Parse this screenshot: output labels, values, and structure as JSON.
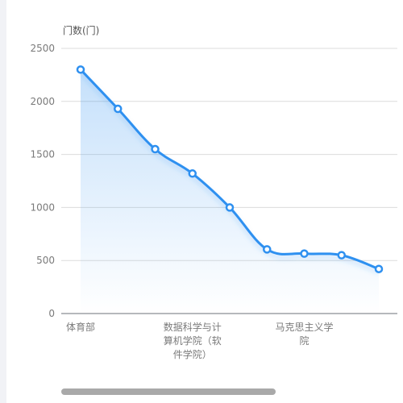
{
  "chart_data": {
    "type": "area",
    "ylabel": "门数(门)",
    "ylim": [
      0,
      2500
    ],
    "yticks": [
      0,
      500,
      1000,
      1500,
      2000,
      2500
    ],
    "grid": true,
    "smooth": true,
    "categories": [
      "体育部",
      "",
      "",
      "数据科学与计算机学院（软件学院）",
      "",
      "",
      "马克思主义学院",
      "",
      ""
    ],
    "x_tick_labels": [
      {
        "index": 0,
        "lines": [
          "体育部"
        ]
      },
      {
        "index": 3,
        "lines": [
          "数据科学与计",
          "算机学院（软",
          "件学院）"
        ]
      },
      {
        "index": 6,
        "lines": [
          "马克思主义学",
          "院"
        ]
      }
    ],
    "series": [
      {
        "values": [
          2300,
          1930,
          1550,
          1320,
          1000,
          605,
          565,
          550,
          420
        ],
        "color": "#2e90f0"
      }
    ]
  },
  "scrollbar": {
    "position": 0,
    "visible_fraction": 0.6
  }
}
